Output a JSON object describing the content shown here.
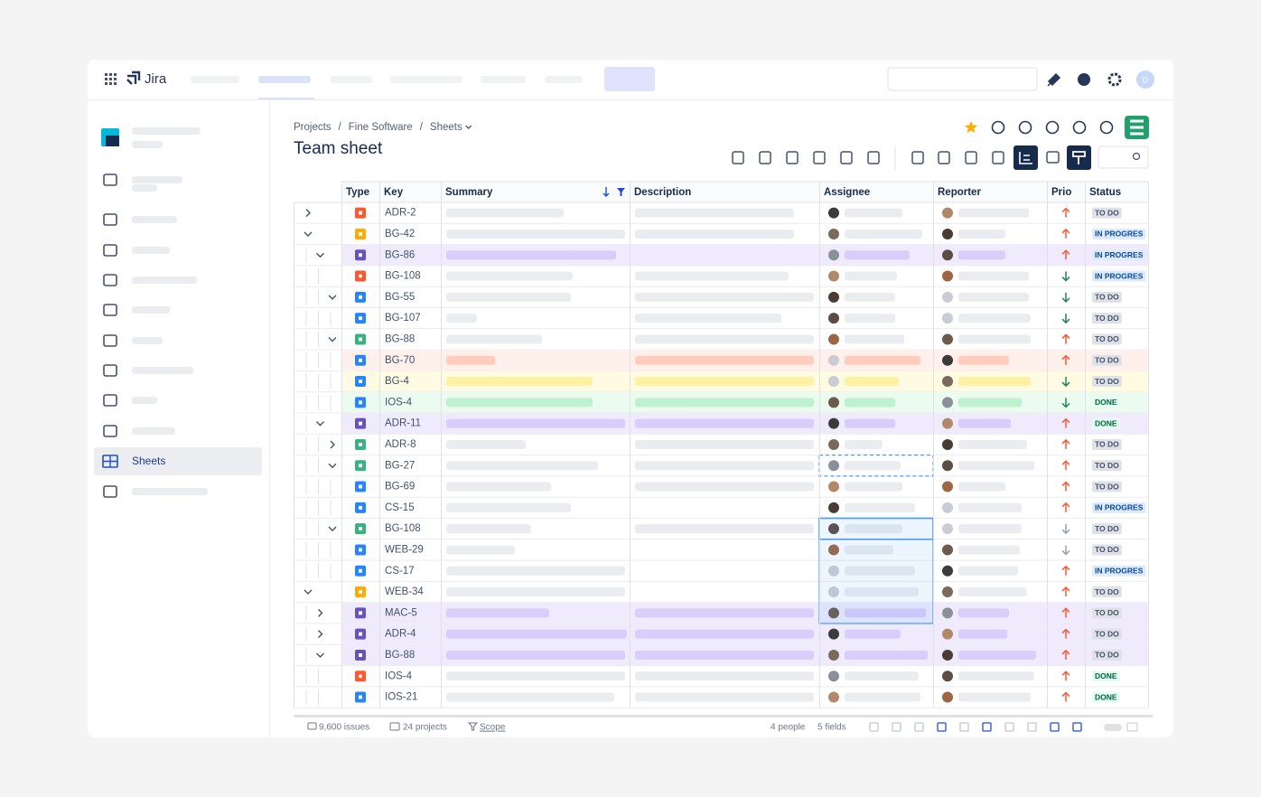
{
  "nav": {
    "product": "Jira",
    "user_initial": "D"
  },
  "sidebar": {
    "active_item": "Sheets"
  },
  "breadcrumbs": {
    "items": [
      "Projects",
      "Fine Software",
      "Sheets"
    ],
    "separator": "/"
  },
  "title": "Team sheet",
  "table": {
    "columns": [
      "Type",
      "Key",
      "Summary",
      "Description",
      "Assignee",
      "Reporter",
      "Prio",
      "Status"
    ],
    "rows": [
      [
        "ADR-2",
        "TO DO"
      ],
      [
        "BG-42",
        "IN PROGRES"
      ],
      [
        "BG-86",
        "IN PROGRES"
      ],
      [
        "BG-108",
        "IN PROGRES"
      ],
      [
        "BG-55",
        "TO DO"
      ],
      [
        "BG-107",
        "TO DO"
      ],
      [
        "BG-88",
        "TO DO"
      ],
      [
        "BG-70",
        "TO DO"
      ],
      [
        "BG-4",
        "TO DO"
      ],
      [
        "IOS-4",
        "DONE"
      ],
      [
        "ADR-11",
        "DONE"
      ],
      [
        "ADR-8",
        "TO DO"
      ],
      [
        "BG-27",
        "TO DO"
      ],
      [
        "BG-69",
        "TO DO"
      ],
      [
        "CS-15",
        "IN PROGRES"
      ],
      [
        "BG-108",
        "TO DO"
      ],
      [
        "WEB-29",
        "TO DO"
      ],
      [
        "CS-17",
        "IN PROGRES"
      ],
      [
        "WEB-34",
        "TO DO"
      ],
      [
        "MAC-5",
        "TO DO"
      ],
      [
        "ADR-4",
        "TO DO"
      ],
      [
        "BG-88",
        "TO DO"
      ],
      [
        "IOS-4",
        "DONE"
      ],
      [
        "IOS-21",
        "DONE"
      ]
    ]
  },
  "footer": {
    "issues": "9,600 issues",
    "projects": "24 projects",
    "scope": "Scope",
    "people": "4 people",
    "fields": "5 fields"
  }
}
